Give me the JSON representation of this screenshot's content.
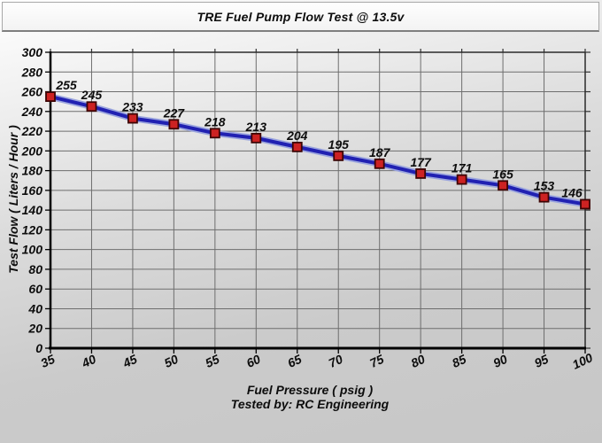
{
  "title_bar": {
    "title": "TRE Fuel Pump Flow Test @ 13.5v"
  },
  "chart_data": {
    "type": "line",
    "title": "TRE Fuel Pump Flow Test @ 13.5v",
    "x": [
      35,
      40,
      45,
      50,
      55,
      60,
      65,
      70,
      75,
      80,
      85,
      90,
      95,
      100
    ],
    "values": [
      255,
      245,
      233,
      227,
      218,
      213,
      204,
      195,
      187,
      177,
      171,
      165,
      153,
      146
    ],
    "point_labels": [
      "255",
      "245",
      "233",
      "227",
      "218",
      "213",
      "204",
      "195",
      "187",
      "177",
      "171",
      "165",
      "153",
      "146"
    ],
    "xlabel": "Fuel Pressure ( psig )",
    "ylabel": "Test Flow ( Liters / Hour )",
    "footnote": "Tested by: RC Engineering",
    "xlim": [
      35,
      100
    ],
    "ylim": [
      0,
      300
    ],
    "xtick_step": 5,
    "ytick_step": 20,
    "xtick_labels": [
      "35",
      "40",
      "45",
      "50",
      "55",
      "60",
      "65",
      "70",
      "75",
      "80",
      "85",
      "90",
      "95",
      "100"
    ],
    "ytick_labels": [
      "0",
      "20",
      "40",
      "60",
      "80",
      "100",
      "120",
      "140",
      "160",
      "180",
      "200",
      "220",
      "240",
      "260",
      "280",
      "300"
    ],
    "grid": true,
    "legend_position": "none",
    "colors": {
      "line": "#2121b2",
      "line_halo": "#9ba5de",
      "marker_fill": "#cd2222",
      "marker_border": "#3d0404",
      "grid": "#6e6e6e",
      "axis": "#000000",
      "text": "#0d0d0d",
      "title_bar_bg": "#fbfbfb",
      "page_bg_top": "#ffffff",
      "page_bg_bottom": "#c7c7c7"
    }
  }
}
